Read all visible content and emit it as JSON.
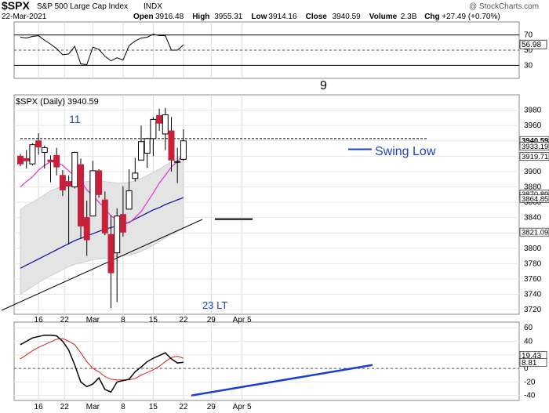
{
  "header": {
    "title_symbol": "$SPX",
    "title_rest": "S&P 500 Large Cap Index",
    "exchange": "INDX",
    "watermark": "@ StockCharts.com",
    "date": "22-Mar-2021",
    "ohlc_line": [
      {
        "label": "Open",
        "value": "3916.48"
      },
      {
        "label": "High",
        "value": "3955.31"
      },
      {
        "label": "Low",
        "value": "3914.16"
      },
      {
        "label": "Close",
        "value": "3940.59"
      },
      {
        "label": "Volume",
        "value": "2.3B"
      },
      {
        "label": "Chg",
        "value": "+27.49 (+0.70%)"
      }
    ],
    "main_label": "$SPX (Daily) 3940.59"
  },
  "annotations": {
    "count_11": "11",
    "count_9": "9",
    "count_23": "23 LT",
    "swing_low": "Swing Low"
  },
  "colors": {
    "up_body": "#ffffff",
    "down_body": "#c8203a",
    "ma_short": "#e040d0",
    "ma_long": "#1a1aa0",
    "band_fill": "#e4e4e4",
    "band_edge": "#c8c8c8",
    "annotation_blue": "#1f3fd0",
    "rsi_fill": "#4a7a4a",
    "macd": "#000000",
    "signal": "#e02020",
    "divergence": "#1a3fd0"
  },
  "chart_data": [
    {
      "type": "line",
      "name": "RSI",
      "x": [
        "Feb 10",
        "Feb 11",
        "Feb 12",
        "Feb 16",
        "Feb 17",
        "Feb 18",
        "Feb 19",
        "Feb 22",
        "Feb 23",
        "Feb 24",
        "Feb 25",
        "Feb 26",
        "Mar 1",
        "Mar 2",
        "Mar 3",
        "Mar 4",
        "Mar 5",
        "Mar 8",
        "Mar 9",
        "Mar 10",
        "Mar 11",
        "Mar 12",
        "Mar 15",
        "Mar 16",
        "Mar 17",
        "Mar 18",
        "Mar 19",
        "Mar 22"
      ],
      "values": [
        67,
        66,
        68,
        69,
        63,
        58,
        52,
        44,
        45,
        55,
        32,
        31,
        54,
        51,
        42,
        36,
        40,
        37,
        56,
        62,
        66,
        67,
        71,
        69,
        69,
        50,
        50,
        57
      ],
      "ylim": [
        15,
        85
      ],
      "yticks": [
        10,
        30,
        50,
        70,
        90
      ],
      "reference_lines": [
        30,
        70
      ],
      "last_label": "56.98"
    },
    {
      "type": "candlestick",
      "name": "$SPX (Daily)",
      "x": [
        "Feb 10",
        "Feb 11",
        "Feb 12",
        "Feb 16",
        "Feb 17",
        "Feb 18",
        "Feb 19",
        "Feb 22",
        "Feb 23",
        "Feb 24",
        "Feb 25",
        "Feb 26",
        "Mar 1",
        "Mar 2",
        "Mar 3",
        "Mar 4",
        "Mar 5",
        "Mar 8",
        "Mar 9",
        "Mar 10",
        "Mar 11",
        "Mar 12",
        "Mar 15",
        "Mar 16",
        "Mar 17",
        "Mar 18",
        "Mar 19",
        "Mar 22"
      ],
      "ohlc": [
        [
          3920,
          3923,
          3907,
          3910
        ],
        [
          3917,
          3928,
          3904,
          3914
        ],
        [
          3910,
          3937,
          3908,
          3935
        ],
        [
          3940,
          3950,
          3922,
          3932
        ],
        [
          3925,
          3934,
          3904,
          3931
        ],
        [
          3915,
          3921,
          3886,
          3913
        ],
        [
          3921,
          3931,
          3895,
          3906
        ],
        [
          3895,
          3902,
          3868,
          3876
        ],
        [
          3887,
          3895,
          3805,
          3881
        ],
        [
          3880,
          3926,
          3878,
          3925
        ],
        [
          3909,
          3917,
          3812,
          3829
        ],
        [
          3840,
          3862,
          3790,
          3811
        ],
        [
          3842,
          3914,
          3842,
          3901
        ],
        [
          3901,
          3903,
          3866,
          3870
        ],
        [
          3863,
          3874,
          3817,
          3820
        ],
        [
          3818,
          3843,
          3722,
          3768
        ],
        [
          3794,
          3852,
          3730,
          3842
        ],
        [
          3844,
          3881,
          3815,
          3821
        ],
        [
          3851,
          3903,
          3851,
          3875
        ],
        [
          3891,
          3918,
          3887,
          3898
        ],
        [
          3915,
          3960,
          3915,
          3939
        ],
        [
          3924,
          3944,
          3905,
          3943
        ],
        [
          3943,
          3971,
          3920,
          3968
        ],
        [
          3973,
          3982,
          3953,
          3963
        ],
        [
          3949,
          3983,
          3928,
          3974
        ],
        [
          3953,
          3971,
          3900,
          3915
        ],
        [
          3913,
          3931,
          3885,
          3913
        ],
        [
          3916,
          3955,
          3914,
          3940
        ]
      ],
      "ylim": [
        3716,
        3998
      ],
      "yticks": [
        3720,
        3740,
        3760,
        3780,
        3800,
        3820,
        3840,
        3860,
        3880,
        3900,
        3920,
        3940,
        3960,
        3980
      ],
      "ma_short": [
        3880,
        3887,
        3893,
        3902,
        3908,
        3913,
        3912,
        3908,
        3901,
        3894,
        3888,
        3876,
        3869,
        3860,
        3852,
        3842,
        3837,
        3834,
        3833,
        3840,
        3848,
        3860,
        3872,
        3885,
        3895,
        3906,
        3913,
        3922
      ],
      "ma_long": [
        3774,
        3778,
        3782,
        3786,
        3790,
        3794,
        3798,
        3802,
        3806,
        3810,
        3813,
        3816,
        3819,
        3822,
        3825,
        3827,
        3829,
        3831,
        3834,
        3838,
        3842,
        3846,
        3850,
        3853,
        3857,
        3860,
        3863,
        3866
      ],
      "band_upper": [
        3850,
        3856,
        3860,
        3865,
        3870,
        3875,
        3878,
        3881,
        3884,
        3885,
        3886,
        3887,
        3888,
        3888,
        3887,
        3886,
        3885,
        3885,
        3886,
        3888,
        3891,
        3895,
        3899,
        3903,
        3908,
        3913,
        3918,
        3923
      ],
      "band_lower": [
        3740,
        3745,
        3750,
        3755,
        3760,
        3764,
        3768,
        3772,
        3776,
        3779,
        3781,
        3783,
        3785,
        3786,
        3787,
        3788,
        3789,
        3790,
        3791,
        3793,
        3796,
        3800,
        3804,
        3809,
        3813,
        3818,
        3822,
        3826
      ],
      "resistance": 3943,
      "swing_low_level": 3929,
      "right_labels": [
        "3940.59",
        "3933.19",
        "3919.71",
        "3870.89",
        "3864.85",
        "3821.09"
      ],
      "x_labels": [
        "16",
        "22",
        "Mar",
        "8",
        "15",
        "22",
        "29",
        "Apr 5"
      ]
    },
    {
      "type": "line",
      "name": "MACD",
      "x": [
        "Feb 10",
        "Feb 11",
        "Feb 12",
        "Feb 16",
        "Feb 17",
        "Feb 18",
        "Feb 19",
        "Feb 22",
        "Feb 23",
        "Feb 24",
        "Feb 25",
        "Feb 26",
        "Mar 1",
        "Mar 2",
        "Mar 3",
        "Mar 4",
        "Mar 5",
        "Mar 8",
        "Mar 9",
        "Mar 10",
        "Mar 11",
        "Mar 12",
        "Mar 15",
        "Mar 16",
        "Mar 17",
        "Mar 18",
        "Mar 19",
        "Mar 22"
      ],
      "series": [
        {
          "values": [
            35,
            40,
            45,
            47,
            49,
            49,
            48,
            40,
            27,
            5,
            -20,
            -27,
            -23,
            -14,
            -31,
            -35,
            -20,
            -18,
            -16,
            -5,
            2,
            10,
            15,
            19,
            23,
            14,
            8,
            9
          ]
        },
        {
          "values": [
            14,
            20,
            26,
            31,
            35,
            39,
            43,
            44,
            40,
            35,
            23,
            10,
            0,
            -5,
            -12,
            -16,
            -17,
            -17,
            -17,
            -15,
            -10,
            -6,
            -2,
            3,
            10,
            16,
            18,
            15
          ]
        }
      ],
      "ylim": [
        -45,
        66
      ],
      "yticks": [
        -40,
        -20,
        0,
        20,
        40,
        60
      ],
      "last_labels": [
        "19.43",
        "8.81"
      ]
    }
  ]
}
